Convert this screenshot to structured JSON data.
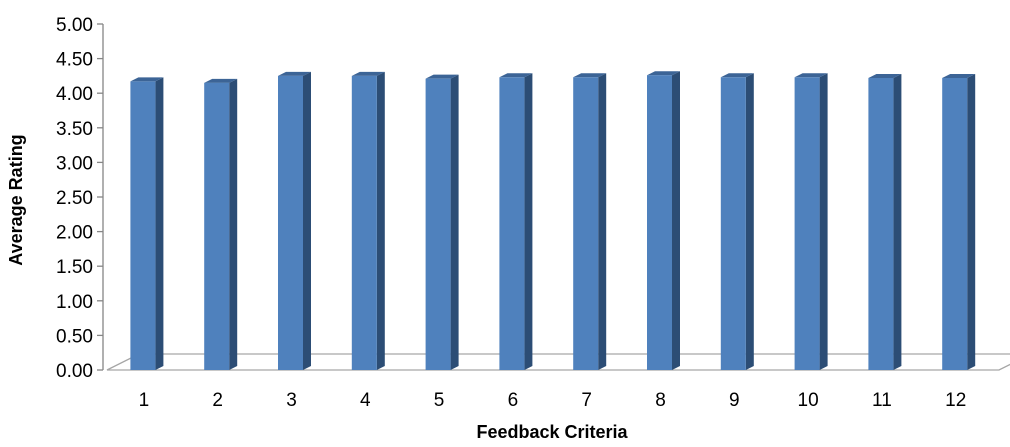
{
  "chart_data": {
    "type": "bar",
    "style": "3d-column",
    "title": "",
    "xlabel": "Feedback Criteria",
    "ylabel": "Average Rating",
    "categories": [
      "1",
      "2",
      "3",
      "4",
      "5",
      "6",
      "7",
      "8",
      "9",
      "10",
      "11",
      "12"
    ],
    "values": [
      4.17,
      4.15,
      4.25,
      4.25,
      4.21,
      4.23,
      4.23,
      4.26,
      4.23,
      4.23,
      4.22,
      4.22
    ],
    "ylim": [
      0,
      5
    ],
    "yticks": [
      "0.00",
      "0.50",
      "1.00",
      "1.50",
      "2.00",
      "2.50",
      "3.00",
      "3.50",
      "4.00",
      "4.50",
      "5.00"
    ],
    "grid": false,
    "legend": "none",
    "colors": {
      "bar_front": "#4F81BD",
      "bar_side": "#2C4D75",
      "bar_top": "#3C6496",
      "floor": "#A6A6A6",
      "axis": "#868686"
    }
  }
}
